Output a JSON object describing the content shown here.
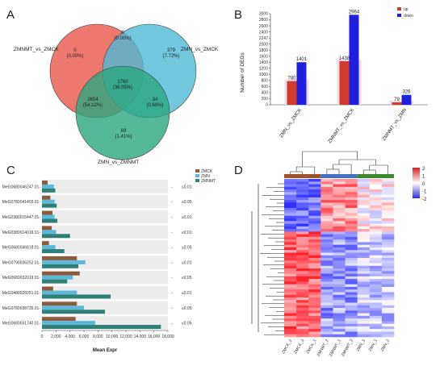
{
  "panels": {
    "a": "A",
    "b": "B",
    "c": "C",
    "d": "D"
  },
  "chart_data": [
    {
      "type": "venn",
      "set_labels": [
        "ZMNMT_vs_ZMCK",
        "ZMN_vs_ZMCK",
        "ZMN_vs_ZMNMT"
      ],
      "colors": [
        "#e8584a",
        "#4fb8d6",
        "#2aa67e"
      ],
      "regions": [
        {
          "sets": [
            "ZMNMT_vs_ZMCK"
          ],
          "count": "0",
          "percent": "(0.00%)"
        },
        {
          "sets": [
            "ZMN_vs_ZMCK"
          ],
          "count": "379",
          "percent": "(7.72%)"
        },
        {
          "sets": [
            "ZMN_vs_ZMNMT"
          ],
          "count": "69",
          "percent": "(1.41%)"
        },
        {
          "sets": [
            "ZMNMT_vs_ZMCK",
            "ZMN_vs_ZMCK"
          ],
          "count": "0",
          "percent": "(0.00%)"
        },
        {
          "sets": [
            "ZMNMT_vs_ZMCK",
            "ZMN_vs_ZMNMT"
          ],
          "count": "2654",
          "percent": "(54.12%)"
        },
        {
          "sets": [
            "ZMN_vs_ZMCK",
            "ZMN_vs_ZMNMT"
          ],
          "count": "34",
          "percent": "(0.69%)"
        },
        {
          "sets": [
            "ZMNMT_vs_ZMCK",
            "ZMN_vs_ZMCK",
            "ZMN_vs_ZMNMT"
          ],
          "count": "1760",
          "percent": "(36.05%)"
        }
      ]
    },
    {
      "type": "bar",
      "ylabel": "Number of DEGs",
      "ylim": [
        0,
        3000
      ],
      "yticks": [
        "0",
        "200",
        "400",
        "600",
        "800",
        "1000",
        "1200",
        "1400",
        "1600",
        "1800",
        "2000",
        "2247",
        "2400",
        "2600",
        "2800",
        "3000"
      ],
      "categories": [
        "ZMN_vs_ZMCK",
        "ZMNMT_vs_ZMCK",
        "ZMNMT_vs_ZMN"
      ],
      "series": [
        {
          "name": "up",
          "color": "#d23b2b",
          "values": [
            780,
            1438,
            79
          ]
        },
        {
          "name": "down",
          "color": "#1f1fe0",
          "values": [
            1401,
            2964,
            326
          ]
        }
      ],
      "legend_position": "top-right"
    },
    {
      "type": "bar",
      "orientation": "horizontal",
      "xlabel": "Mean Expr",
      "xlim": [
        0,
        18000
      ],
      "xticks": [
        "0",
        "2,000",
        "4,000",
        "6,000",
        "8,000",
        "10,000",
        "12,000",
        "14,000",
        "16,000",
        "18,000"
      ],
      "categories": [
        "MeG0680046247.01-",
        "MeG0780041403.01-",
        "MeG0380015447.01-",
        "MeG0380014016.01-",
        "MeG0680046818.01-",
        "MeG0790036252.01-",
        "MeG0680032019.01-",
        "MeG0480026051.01-",
        "MeG0780038735.01-",
        "MeG0680031740.01-"
      ],
      "pvalues": [
        "≤0.01",
        "≤0.05",
        "≤0.01",
        "≤0.01",
        "≤0.05",
        "≤0.01",
        "≤0.05",
        "≤0.01",
        "≤0.05",
        "≤0.05"
      ],
      "series": [
        {
          "name": "ZMCK",
          "color": "#8c5a3c",
          "values": [
            800,
            1200,
            1500,
            1400,
            1000,
            5000,
            5400,
            1600,
            5000,
            4800
          ]
        },
        {
          "name": "ZMN",
          "color": "#5db8d8",
          "values": [
            1700,
            1800,
            1800,
            2000,
            1900,
            6200,
            4400,
            5000,
            6000,
            7600
          ]
        },
        {
          "name": "ZMNMT",
          "color": "#2e7f76",
          "values": [
            1900,
            2100,
            2200,
            4000,
            3200,
            5200,
            3600,
            9800,
            9000,
            17000
          ]
        }
      ],
      "legend_position": "top-right"
    },
    {
      "type": "heatmap",
      "columns": [
        "ZMCK_2",
        "ZMCK_3",
        "ZMCK_1",
        "ZMNMT_2",
        "ZMNMT_1",
        "ZMNMT_3",
        "ZMN_3",
        "ZMN_1",
        "ZMN_2"
      ],
      "group_colors": [
        "#a0522d",
        "#4472c4",
        "#3c8a2e"
      ],
      "color_scale": {
        "min": -2,
        "max": 2,
        "ticks": [
          "2",
          "1",
          "0",
          "-1",
          "-2"
        ],
        "low": "#2b2bd9",
        "mid": "#ffffff",
        "high": "#d41f2a"
      }
    }
  ]
}
